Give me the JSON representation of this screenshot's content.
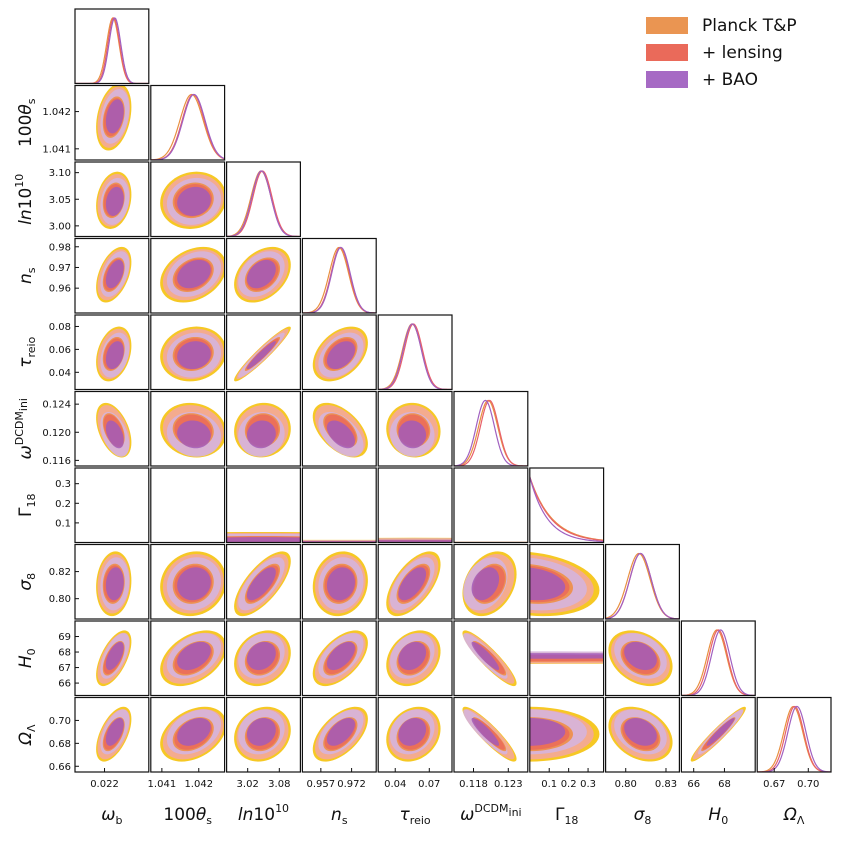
{
  "chart_data": {
    "type": "triangle",
    "parameters": [
      {
        "key": "omega_b",
        "label": "ω",
        "sub": "b",
        "sup": "",
        "prefix": "",
        "range": [
          0.0212,
          0.0232
        ],
        "ticks": [
          0.022
        ],
        "tick_labels": [
          "0.022"
        ],
        "mean": 0.02225,
        "sigma": 0.00016,
        "mean_bao": 0.02228
      },
      {
        "key": "theta_s",
        "label": "θ",
        "sub": "s",
        "sup": "",
        "prefix": "100",
        "range": [
          1.0407,
          1.0427
        ],
        "ticks": [
          1.041,
          1.042
        ],
        "tick_labels": [
          "1.041",
          "1.042"
        ],
        "mean": 1.04185,
        "sigma": 0.0003,
        "mean_bao": 1.04187
      },
      {
        "key": "ln10As",
        "label": "10",
        "sub": "",
        "sup": "10",
        "prefix": "ln",
        "range": [
          2.98,
          3.12
        ],
        "ticks": [
          3.0,
          3.05,
          3.1
        ],
        "tick_labels": [
          "3.00",
          "3.05",
          "3.10"
        ],
        "x_ticks": [
          3.02,
          3.08
        ],
        "x_tick_labels": [
          "3.02",
          "3.08"
        ],
        "mean": 3.048,
        "sigma": 0.018,
        "mean_bao": 3.046
      },
      {
        "key": "n_s",
        "label": "n",
        "sub": "s",
        "sup": "",
        "prefix": "",
        "range": [
          0.948,
          0.984
        ],
        "ticks": [
          0.96,
          0.97,
          0.98
        ],
        "tick_labels": [
          "0.96",
          "0.97",
          "0.98"
        ],
        "x_ticks": [
          0.957,
          0.972
        ],
        "x_tick_labels": [
          "0.957",
          "0.972"
        ],
        "mean": 0.9665,
        "sigma": 0.0045,
        "mean_bao": 0.9668
      },
      {
        "key": "tau_reio",
        "label": "τ",
        "sub": "reio",
        "sup": "",
        "prefix": "",
        "range": [
          0.025,
          0.09
        ],
        "ticks": [
          0.04,
          0.06,
          0.08
        ],
        "tick_labels": [
          "0.04",
          "0.06",
          "0.08"
        ],
        "x_ticks": [
          0.04,
          0.07
        ],
        "x_tick_labels": [
          "0.04",
          "0.07"
        ],
        "mean": 0.056,
        "sigma": 0.008,
        "mean_bao": 0.055
      },
      {
        "key": "omega_ini_dcdm",
        "label": "ω",
        "sub": "ini",
        "sup": "DCDM",
        "prefix": "",
        "range": [
          0.1152,
          0.1258
        ],
        "ticks": [
          0.116,
          0.12,
          0.124
        ],
        "tick_labels": [
          "0.116",
          "0.120",
          "0.124"
        ],
        "x_ticks": [
          0.118,
          0.123
        ],
        "x_tick_labels": [
          "0.118",
          "0.123"
        ],
        "mean": 0.1203,
        "sigma": 0.0013,
        "mean_bao": 0.1197
      },
      {
        "key": "gamma_18",
        "label": "Γ",
        "sub": "18",
        "sup": "",
        "prefix": "",
        "range": [
          0.0,
          0.38
        ],
        "ticks": [
          0.1,
          0.2,
          0.3
        ],
        "tick_labels": [
          "0.1",
          "0.2",
          "0.3"
        ],
        "x_ticks": [
          0.1,
          0.2,
          0.3
        ],
        "x_tick_labels": [
          "0.1",
          "0.2",
          "0.3"
        ],
        "mean": 0.0,
        "sigma": 0.12,
        "mean_bao": 0.0
      },
      {
        "key": "sigma_8",
        "label": "σ",
        "sub": "8",
        "sup": "",
        "prefix": "",
        "range": [
          0.785,
          0.84
        ],
        "ticks": [
          0.8,
          0.82
        ],
        "tick_labels": [
          "0.80",
          "0.82"
        ],
        "x_ticks": [
          0.8,
          0.83
        ],
        "x_tick_labels": [
          "0.80",
          "0.83"
        ],
        "mean": 0.811,
        "sigma": 0.008,
        "mean_bao": 0.811
      },
      {
        "key": "H0",
        "label": "H",
        "sub": "0",
        "sup": "",
        "prefix": "",
        "range": [
          65.2,
          70.0
        ],
        "ticks": [
          66,
          67,
          68,
          69
        ],
        "tick_labels": [
          "66",
          "67",
          "68",
          "69"
        ],
        "x_ticks": [
          66,
          68
        ],
        "x_tick_labels": [
          "66",
          "68"
        ],
        "mean": 67.6,
        "sigma": 0.6,
        "mean_bao": 67.75
      },
      {
        "key": "Omega_Lambda",
        "label": "Ω",
        "sub": "Λ",
        "sup": "",
        "prefix": "",
        "range": [
          0.655,
          0.72
        ],
        "ticks": [
          0.66,
          0.68,
          0.7
        ],
        "tick_labels": [
          "0.66",
          "0.68",
          "0.70"
        ],
        "x_ticks": [
          0.67,
          0.7
        ],
        "x_tick_labels": [
          "0.67",
          "0.70"
        ],
        "mean": 0.688,
        "sigma": 0.008,
        "mean_bao": 0.69
      }
    ],
    "correlations": [
      [
        1,
        0.3,
        0.2,
        0.45,
        0.3,
        -0.45,
        0,
        0.1,
        0.6,
        0.55
      ],
      [
        0.3,
        1,
        0.1,
        0.3,
        0.1,
        -0.1,
        0,
        0.1,
        0.4,
        0.35
      ],
      [
        0.2,
        0.1,
        1,
        0.35,
        0.95,
        0.05,
        0,
        0.7,
        0.2,
        0.15
      ],
      [
        0.45,
        0.3,
        0.35,
        1,
        0.4,
        -0.5,
        0,
        0.1,
        0.55,
        0.55
      ],
      [
        0.3,
        0.1,
        0.95,
        0.4,
        1,
        -0.05,
        0,
        0.6,
        0.25,
        0.2
      ],
      [
        -0.45,
        -0.1,
        0.05,
        -0.5,
        -0.05,
        1,
        0,
        0.3,
        -0.9,
        -0.9
      ],
      [
        0,
        0,
        0,
        0,
        0,
        0,
        1,
        -0.2,
        0,
        0
      ],
      [
        0.1,
        0.1,
        0.7,
        0.1,
        0.6,
        0.3,
        -0.2,
        1,
        -0.3,
        -0.3
      ],
      [
        0.6,
        0.4,
        0.2,
        0.55,
        0.25,
        -0.9,
        0,
        -0.3,
        1,
        0.95
      ],
      [
        0.55,
        0.35,
        0.15,
        0.55,
        0.2,
        -0.9,
        0,
        -0.3,
        0.95,
        1
      ]
    ],
    "series": [
      {
        "name": "Planck T&P",
        "color": "#f5c518",
        "inner_color": "#f08c3c",
        "line_color": "#e89040"
      },
      {
        "name": "+ lensing",
        "color": "#f4a79a",
        "inner_color": "#ea6a5a",
        "line_color": "#e8606a"
      },
      {
        "name": "+ BAO",
        "color": "#d6b4dc",
        "inner_color": "#a35ab8",
        "line_color": "#a060c0"
      }
    ],
    "contour_levels": [
      "68%",
      "95%"
    ]
  },
  "legend": {
    "items": [
      {
        "label": "Planck T&P",
        "color": "#ea9552"
      },
      {
        "label": "+ lensing",
        "color": "#ea6a5a"
      },
      {
        "label": "+ BAO",
        "color": "#a66ac4"
      }
    ]
  }
}
